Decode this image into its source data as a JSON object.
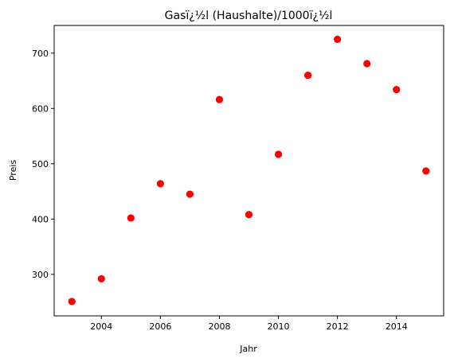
{
  "chart_data": {
    "type": "scatter",
    "title": "Gasï¿½l (Haushalte)/1000ï¿½l",
    "xlabel": "Jahr",
    "ylabel": "Preis",
    "xlim": [
      2002.4,
      2015.6
    ],
    "ylim": [
      225,
      750
    ],
    "x_ticks": [
      2004,
      2006,
      2008,
      2010,
      2012,
      2014
    ],
    "x_tick_labels": [
      "2004",
      "2006",
      "2008",
      "2010",
      "2012",
      "2014"
    ],
    "y_ticks": [
      300,
      400,
      500,
      600,
      700
    ],
    "y_tick_labels": [
      "300",
      "400",
      "500",
      "600",
      "700"
    ],
    "grid": false,
    "series": [
      {
        "color": "#ff0000",
        "x": [
          2003,
          2004,
          2005,
          2006,
          2007,
          2008,
          2009,
          2010,
          2011,
          2012,
          2013,
          2014,
          2015
        ],
        "y": [
          251,
          292,
          402,
          464,
          445,
          616,
          408,
          517,
          660,
          725,
          681,
          634,
          487
        ]
      }
    ]
  }
}
